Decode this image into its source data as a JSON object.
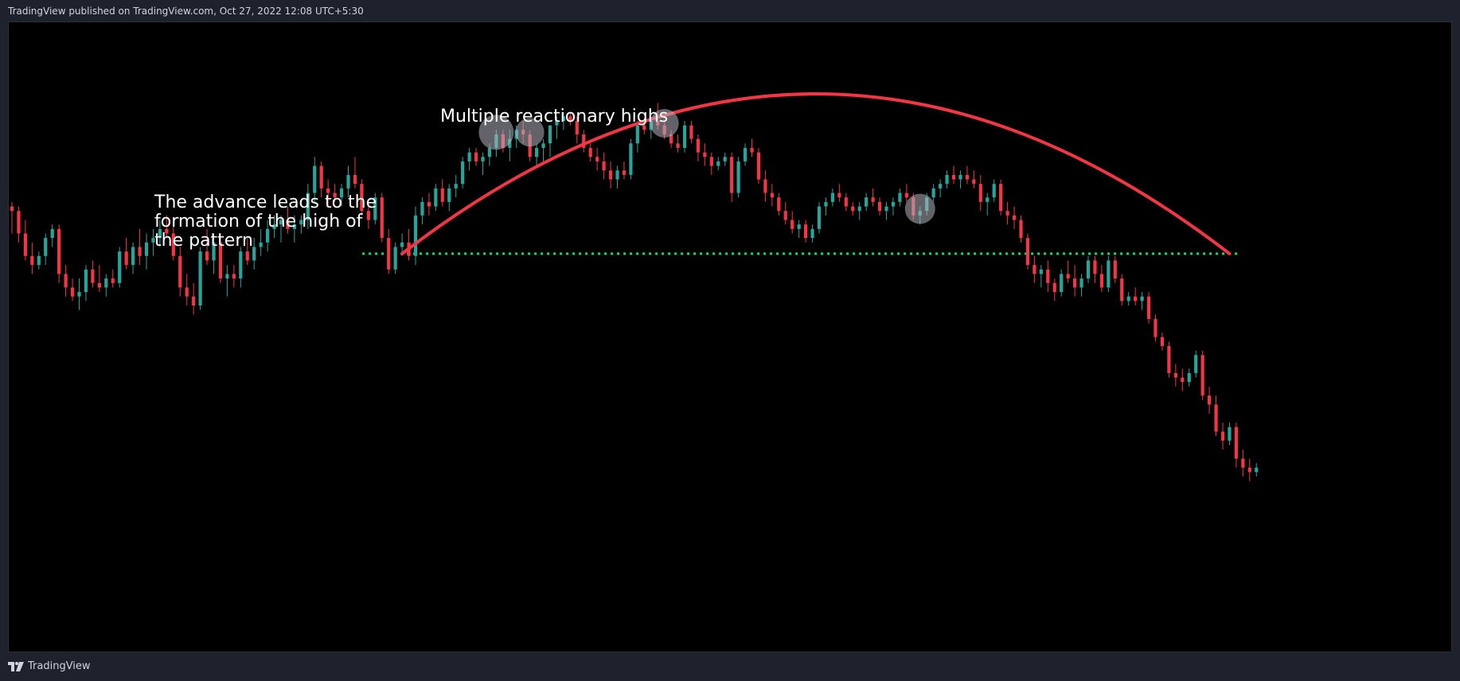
{
  "header": {
    "published_text": "TradingView published on TradingView.com, Oct 27, 2022 12:08 UTC+5:30"
  },
  "footer": {
    "brand": "TradingView",
    "logo_icon": "tradingview-logo-icon"
  },
  "colors": {
    "up": "#26a69a",
    "down": "#f23645",
    "curve": "#f23645",
    "neckline": "#00e676",
    "highlight": "#b2b5be",
    "background": "#000000"
  },
  "annotations": [
    {
      "id": "advance",
      "lines": [
        "The advance leads to the",
        "formation of the high of",
        "the pattern"
      ]
    },
    {
      "id": "reactionary",
      "lines": [
        "Multiple reactionary highs"
      ]
    }
  ],
  "chart_data": {
    "type": "candlestick",
    "title": "",
    "xlabel": "",
    "ylabel": "",
    "grid": false,
    "axes_visible": false,
    "ylim": [
      0,
      100
    ],
    "candles": [
      [
        75,
        76,
        69,
        74
      ],
      [
        74,
        75,
        67,
        69
      ],
      [
        69,
        72,
        63,
        64
      ],
      [
        64,
        67,
        60,
        62
      ],
      [
        62,
        65,
        61,
        64
      ],
      [
        64,
        69,
        62,
        68
      ],
      [
        68,
        71,
        66,
        70
      ],
      [
        70,
        71,
        58,
        60
      ],
      [
        60,
        62,
        55,
        57
      ],
      [
        57,
        59,
        54,
        55
      ],
      [
        55,
        59,
        52,
        56
      ],
      [
        56,
        62,
        54,
        61
      ],
      [
        61,
        63,
        57,
        58
      ],
      [
        58,
        62,
        56,
        57
      ],
      [
        57,
        60,
        55,
        59
      ],
      [
        59,
        61,
        57,
        58
      ],
      [
        58,
        66,
        57,
        65
      ],
      [
        65,
        68,
        61,
        62
      ],
      [
        62,
        67,
        60,
        66
      ],
      [
        66,
        70,
        62,
        64
      ],
      [
        64,
        69,
        61,
        67
      ],
      [
        67,
        70,
        64,
        68
      ],
      [
        68,
        72,
        66,
        70
      ],
      [
        70,
        73,
        68,
        69
      ],
      [
        69,
        71,
        63,
        64
      ],
      [
        64,
        66,
        55,
        57
      ],
      [
        57,
        60,
        53,
        55
      ],
      [
        55,
        58,
        51,
        53
      ],
      [
        53,
        66,
        52,
        65
      ],
      [
        65,
        70,
        62,
        63
      ],
      [
        63,
        69,
        60,
        67
      ],
      [
        67,
        69,
        58,
        59
      ],
      [
        59,
        62,
        55,
        60
      ],
      [
        60,
        62,
        57,
        59
      ],
      [
        59,
        66,
        57,
        65
      ],
      [
        65,
        68,
        62,
        63
      ],
      [
        63,
        68,
        61,
        66
      ],
      [
        66,
        70,
        64,
        67
      ],
      [
        67,
        72,
        65,
        70
      ],
      [
        70,
        73,
        68,
        71
      ],
      [
        71,
        73,
        67,
        72
      ],
      [
        72,
        75,
        69,
        70
      ],
      [
        70,
        73,
        67,
        71
      ],
      [
        71,
        73,
        69,
        72
      ],
      [
        72,
        80,
        70,
        78
      ],
      [
        78,
        86,
        76,
        84
      ],
      [
        84,
        85,
        77,
        79
      ],
      [
        79,
        81,
        75,
        78
      ],
      [
        78,
        80,
        76,
        77
      ],
      [
        77,
        80,
        75,
        79
      ],
      [
        79,
        84,
        77,
        82
      ],
      [
        82,
        86,
        79,
        80
      ],
      [
        80,
        81,
        73,
        74
      ],
      [
        74,
        76,
        70,
        72
      ],
      [
        72,
        78,
        71,
        77
      ],
      [
        77,
        78,
        67,
        68
      ],
      [
        68,
        70,
        60,
        61
      ],
      [
        61,
        67,
        60,
        66
      ],
      [
        66,
        69,
        64,
        67
      ],
      [
        67,
        70,
        63,
        64
      ],
      [
        64,
        75,
        62,
        73
      ],
      [
        73,
        77,
        71,
        76
      ],
      [
        76,
        78,
        73,
        75
      ],
      [
        75,
        80,
        74,
        79
      ],
      [
        79,
        81,
        75,
        76
      ],
      [
        76,
        80,
        74,
        79
      ],
      [
        79,
        82,
        77,
        80
      ],
      [
        80,
        86,
        79,
        85
      ],
      [
        85,
        88,
        83,
        87
      ],
      [
        87,
        88,
        84,
        85
      ],
      [
        85,
        87,
        82,
        86
      ],
      [
        86,
        89,
        84,
        88
      ],
      [
        88,
        92,
        86,
        91
      ],
      [
        91,
        92,
        87,
        88
      ],
      [
        88,
        92,
        85,
        90
      ],
      [
        90,
        93,
        88,
        92
      ],
      [
        92,
        94,
        89,
        91
      ],
      [
        91,
        92,
        85,
        86
      ],
      [
        86,
        89,
        84,
        88
      ],
      [
        88,
        90,
        85,
        89
      ],
      [
        89,
        93,
        86,
        93
      ],
      [
        93,
        95,
        90,
        94
      ],
      [
        94,
        96,
        92,
        95
      ],
      [
        95,
        96,
        93,
        94
      ],
      [
        94,
        95,
        89,
        91
      ],
      [
        91,
        92,
        87,
        88
      ],
      [
        88,
        89,
        85,
        86
      ],
      [
        86,
        88,
        83,
        85
      ],
      [
        85,
        87,
        81,
        83
      ],
      [
        83,
        85,
        79,
        81
      ],
      [
        81,
        84,
        79,
        83
      ],
      [
        83,
        85,
        81,
        82
      ],
      [
        82,
        90,
        81,
        89
      ],
      [
        89,
        94,
        87,
        93
      ],
      [
        93,
        94,
        91,
        92
      ],
      [
        92,
        95,
        90,
        94
      ],
      [
        94,
        98,
        92,
        93
      ],
      [
        93,
        94,
        90,
        91
      ],
      [
        91,
        92,
        88,
        89
      ],
      [
        89,
        91,
        87,
        88
      ],
      [
        88,
        94,
        87,
        93
      ],
      [
        93,
        94,
        89,
        90
      ],
      [
        90,
        91,
        85,
        87
      ],
      [
        87,
        89,
        84,
        86
      ],
      [
        86,
        87,
        82,
        84
      ],
      [
        84,
        86,
        83,
        85
      ],
      [
        85,
        87,
        84,
        86
      ],
      [
        86,
        87,
        76,
        78
      ],
      [
        78,
        86,
        77,
        85
      ],
      [
        85,
        89,
        84,
        88
      ],
      [
        88,
        90,
        86,
        87
      ],
      [
        87,
        88,
        80,
        81
      ],
      [
        81,
        83,
        76,
        78
      ],
      [
        78,
        80,
        75,
        77
      ],
      [
        77,
        78,
        73,
        74
      ],
      [
        74,
        76,
        71,
        72
      ],
      [
        72,
        74,
        69,
        70
      ],
      [
        70,
        72,
        68,
        71
      ],
      [
        71,
        72,
        67,
        68
      ],
      [
        68,
        71,
        67,
        70
      ],
      [
        70,
        76,
        69,
        75
      ],
      [
        75,
        77,
        73,
        76
      ],
      [
        76,
        79,
        75,
        78
      ],
      [
        78,
        80,
        76,
        77
      ],
      [
        77,
        78,
        74,
        75
      ],
      [
        75,
        76,
        73,
        74
      ],
      [
        74,
        76,
        72,
        75
      ],
      [
        75,
        78,
        74,
        77
      ],
      [
        77,
        79,
        75,
        76
      ],
      [
        76,
        77,
        73,
        74
      ],
      [
        74,
        76,
        72,
        75
      ],
      [
        75,
        77,
        73,
        76
      ],
      [
        76,
        79,
        75,
        78
      ],
      [
        78,
        80,
        76,
        77
      ],
      [
        77,
        78,
        72,
        73
      ],
      [
        73,
        75,
        71,
        74
      ],
      [
        74,
        78,
        73,
        77
      ],
      [
        77,
        80,
        76,
        79
      ],
      [
        79,
        81,
        77,
        80
      ],
      [
        80,
        83,
        79,
        82
      ],
      [
        82,
        84,
        80,
        81
      ],
      [
        81,
        83,
        79,
        82
      ],
      [
        82,
        84,
        80,
        81
      ],
      [
        81,
        83,
        79,
        80
      ],
      [
        80,
        82,
        74,
        76
      ],
      [
        76,
        78,
        73,
        77
      ],
      [
        77,
        81,
        76,
        80
      ],
      [
        80,
        81,
        73,
        74
      ],
      [
        74,
        76,
        71,
        73
      ],
      [
        73,
        75,
        70,
        72
      ],
      [
        72,
        73,
        67,
        68
      ],
      [
        68,
        69,
        61,
        62
      ],
      [
        62,
        64,
        58,
        60
      ],
      [
        60,
        62,
        57,
        61
      ],
      [
        61,
        63,
        56,
        58
      ],
      [
        58,
        59,
        54,
        56
      ],
      [
        56,
        61,
        55,
        60
      ],
      [
        60,
        63,
        58,
        59
      ],
      [
        59,
        62,
        55,
        57
      ],
      [
        57,
        60,
        55,
        59
      ],
      [
        59,
        64,
        58,
        63
      ],
      [
        63,
        64,
        58,
        60
      ],
      [
        60,
        62,
        56,
        57
      ],
      [
        57,
        64,
        56,
        63
      ],
      [
        63,
        64,
        58,
        59
      ],
      [
        59,
        60,
        53,
        54
      ],
      [
        54,
        56,
        53,
        55
      ],
      [
        55,
        57,
        53,
        54
      ],
      [
        54,
        56,
        52,
        55
      ],
      [
        55,
        56,
        49,
        50
      ],
      [
        50,
        51,
        45,
        46
      ],
      [
        46,
        47,
        43,
        44
      ],
      [
        44,
        45,
        37,
        38
      ],
      [
        38,
        40,
        35,
        37
      ],
      [
        37,
        39,
        34,
        36
      ],
      [
        36,
        39,
        35,
        38
      ],
      [
        38,
        43,
        37,
        42
      ],
      [
        42,
        43,
        32,
        33
      ],
      [
        33,
        35,
        29,
        31
      ],
      [
        31,
        33,
        24,
        25
      ],
      [
        25,
        27,
        21,
        23
      ],
      [
        23,
        27,
        22,
        26
      ],
      [
        26,
        27,
        17,
        19
      ],
      [
        19,
        21,
        15,
        17
      ],
      [
        17,
        19,
        14,
        16
      ],
      [
        16,
        18,
        15,
        17
      ]
    ],
    "neckline": {
      "level": 64.5,
      "style": "dotted"
    },
    "arc": {
      "start_index": 58,
      "end_index": 181,
      "start_value": 64.5,
      "end_value": 64.5,
      "peak_value": 100
    },
    "highlighted_highs": [
      77,
      97,
      135
    ]
  }
}
